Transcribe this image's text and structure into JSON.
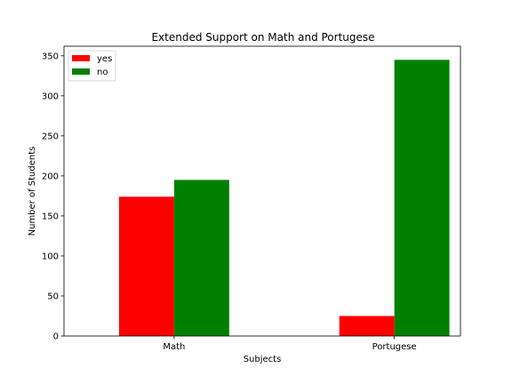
{
  "chart_data": {
    "type": "bar",
    "title": "Extended Support on Math and Portugese",
    "xlabel": "Subjects",
    "ylabel": "Number of Students",
    "categories": [
      "Math",
      "Portugese"
    ],
    "series": [
      {
        "name": "yes",
        "color": "#ff0000",
        "values": [
          174,
          25
        ]
      },
      {
        "name": "no",
        "color": "#008000",
        "values": [
          195,
          345
        ]
      }
    ],
    "ylim": [
      0,
      362
    ],
    "yticks": [
      0,
      50,
      100,
      150,
      200,
      250,
      300,
      350
    ],
    "legend_position": "top-left",
    "grid": false
  }
}
